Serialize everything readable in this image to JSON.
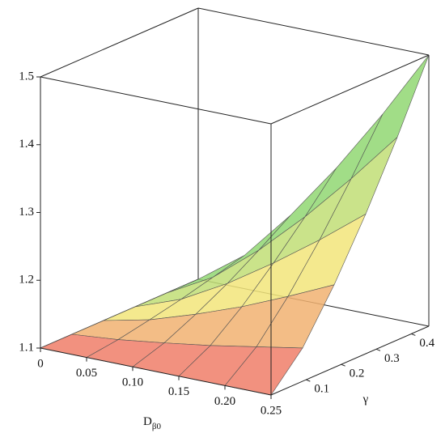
{
  "chart_data": {
    "type": "surface",
    "x_label": "D",
    "x_label_sub": "β0",
    "y_label": "γ",
    "x": [
      0,
      0.05,
      0.1,
      0.15,
      0.2,
      0.25
    ],
    "y": [
      0,
      0.09,
      0.18,
      0.27,
      0.36,
      0.45
    ],
    "z": [
      [
        1.1,
        1.1,
        1.1,
        1.1,
        1.1,
        1.1
      ],
      [
        1.1,
        1.106,
        1.115,
        1.125,
        1.137,
        1.149
      ],
      [
        1.1,
        1.115,
        1.137,
        1.162,
        1.191,
        1.222
      ],
      [
        1.1,
        1.125,
        1.162,
        1.206,
        1.254,
        1.306
      ],
      [
        1.1,
        1.137,
        1.191,
        1.254,
        1.324,
        1.399
      ],
      [
        1.1,
        1.149,
        1.222,
        1.306,
        1.399,
        1.5
      ]
    ],
    "xlim": [
      0,
      0.25
    ],
    "ylim": [
      0,
      0.45
    ],
    "zlim": [
      1.1,
      1.5
    ],
    "xticks": [
      0,
      0.05,
      {
        "value": 0.1,
        "label": "0.10"
      },
      0.15,
      {
        "value": 0.2,
        "label": "0.20"
      },
      0.25
    ],
    "yticks": [
      0.1,
      0.2,
      0.3,
      0.4
    ],
    "zticks": [
      1.1,
      1.2,
      1.3,
      1.4,
      1.5
    ],
    "colormap": [
      "#f06464",
      "#f2e57a",
      "#78d470"
    ]
  }
}
